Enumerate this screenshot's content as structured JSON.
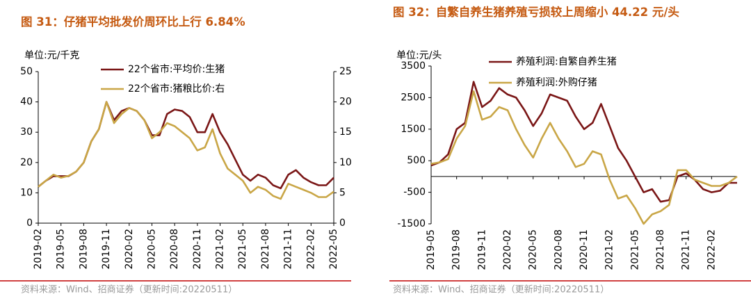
{
  "chart_data": [
    {
      "type": "line",
      "title": "图 31：仔猪平均批发价周环比上行 6.84%",
      "unit": "单位:元/千克",
      "source": "资料来源：Wind、招商证券（更新时间:20220511）",
      "categories": [
        "2019-02",
        null,
        null,
        "2019-05",
        null,
        null,
        "2019-08",
        null,
        null,
        "2019-11",
        null,
        null,
        "2020-02",
        null,
        null,
        "2020-05",
        null,
        null,
        "2020-08",
        null,
        null,
        "2020-11",
        null,
        null,
        "2021-02",
        null,
        null,
        "2021-05",
        null,
        null,
        "2021-08",
        null,
        null,
        "2021-11",
        null,
        null,
        "2022-02",
        null,
        null,
        "2022-05"
      ],
      "ylim": [
        0,
        50
      ],
      "yticks": [
        0,
        10,
        20,
        30,
        40,
        50
      ],
      "y2lim": [
        0,
        25
      ],
      "y2ticks": [
        0,
        5,
        10,
        15,
        20,
        25
      ],
      "series": [
        {
          "name": "22个省市:平均价:生猪",
          "color": "#7a1616",
          "values": [
            12,
            14,
            15.5,
            15.5,
            15.5,
            17,
            20,
            27,
            31,
            40,
            34,
            37,
            38,
            37,
            34,
            29,
            29,
            36,
            37.5,
            37,
            35,
            30,
            30,
            36,
            30,
            26,
            21,
            16,
            14,
            16,
            15,
            12.5,
            11.5,
            16,
            17.5,
            15,
            13.5,
            12.5,
            12.5,
            15
          ]
        },
        {
          "name": "22个省市:猪粮比价:右",
          "color": "#c9a646",
          "axis": "y2",
          "values": [
            6,
            7,
            8,
            7.5,
            7.8,
            8.5,
            10,
            13.5,
            15.5,
            20,
            16.5,
            18,
            19,
            18.5,
            17,
            14,
            15,
            16.5,
            16,
            15,
            14,
            12,
            12.5,
            15.5,
            11.5,
            9,
            8,
            7,
            5,
            6,
            5.5,
            4.5,
            4,
            6.5,
            6,
            5.5,
            5,
            4.3,
            4.3,
            5.2
          ]
        }
      ]
    },
    {
      "type": "line",
      "title": "图 32：自繁自养生猪养殖亏损较上周缩小 44.22 元/头",
      "unit": "单位:元/头",
      "source": "资料来源：Wind、招商证券（更新时间:20220511）",
      "categories": [
        "2019-05",
        null,
        null,
        "2019-08",
        null,
        null,
        "2019-11",
        null,
        null,
        "2020-02",
        null,
        null,
        "2020-05",
        null,
        null,
        "2020-08",
        null,
        null,
        "2020-11",
        null,
        null,
        "2021-02",
        null,
        null,
        "2021-05",
        null,
        null,
        "2021-08",
        null,
        null,
        "2021-11",
        null,
        null,
        "2022-02",
        null,
        null,
        null
      ],
      "ylim": [
        -1500,
        3500
      ],
      "yticks": [
        -1500,
        -500,
        500,
        1500,
        2500,
        3500
      ],
      "series": [
        {
          "name": "养殖利润:自繁自养生猪",
          "color": "#7a1616",
          "values": [
            350,
            450,
            700,
            1500,
            1700,
            3000,
            2200,
            2400,
            2800,
            2600,
            2500,
            2100,
            1600,
            2000,
            2600,
            2500,
            2400,
            1900,
            1500,
            1700,
            2300,
            1600,
            900,
            500,
            0,
            -500,
            -400,
            -800,
            -750,
            0,
            100,
            -100,
            -400,
            -500,
            -450,
            -200,
            -200
          ]
        },
        {
          "name": "养殖利润:外购仔猪",
          "color": "#c9a646",
          "values": [
            400,
            450,
            550,
            1200,
            1600,
            2700,
            1800,
            1900,
            2200,
            2100,
            1500,
            1000,
            600,
            1200,
            1700,
            1200,
            800,
            300,
            400,
            800,
            700,
            -100,
            -700,
            -600,
            -1000,
            -1500,
            -1200,
            -1100,
            -900,
            200,
            200,
            -100,
            -200,
            -300,
            -300,
            -200,
            0
          ]
        }
      ]
    }
  ]
}
